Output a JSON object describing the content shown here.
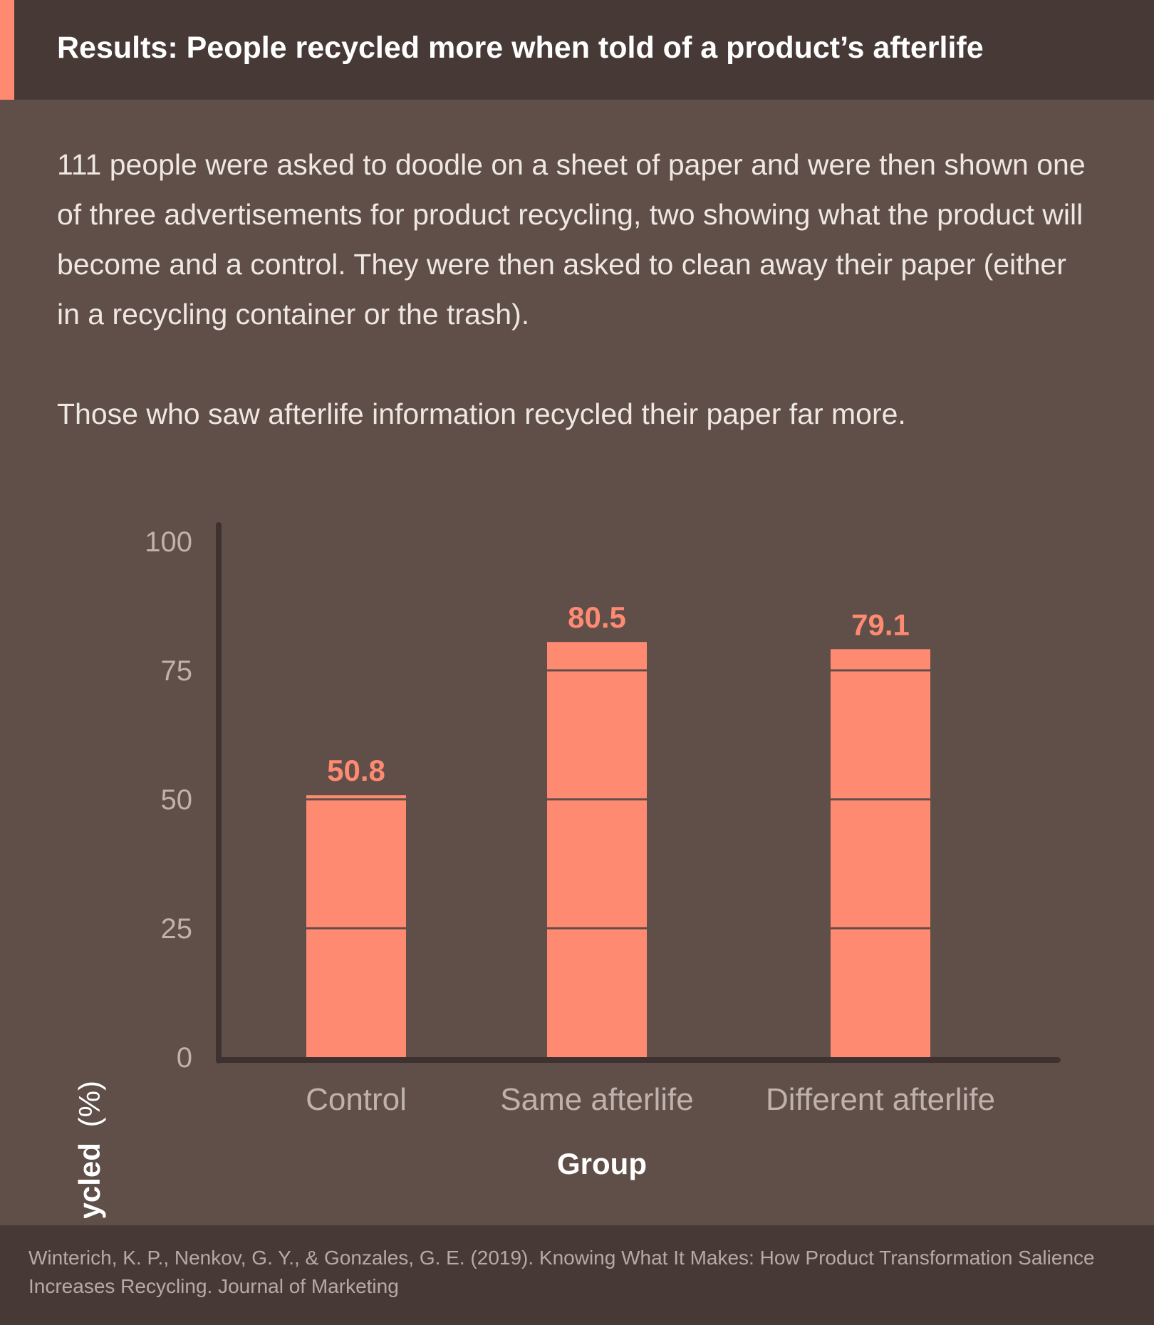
{
  "header": {
    "title": "Results: People recycled more when told of a product’s afterlife",
    "accent_color": "#ff8a72",
    "background_color": "#473a36"
  },
  "intro": {
    "paragraph1": "111 people were asked to doodle on a sheet of paper and were then shown one of three advertisements for product recycling, two showing what the product will become and a control. They were then asked to clean away their paper (either in a recycling container or the trash).",
    "paragraph2": "Those who saw afterlife information recycled their paper far more."
  },
  "chart_data": {
    "type": "bar",
    "title": "",
    "categories": [
      "Control",
      "Same afterlife",
      "Different afterlife"
    ],
    "values": [
      50.8,
      80.5,
      79.1
    ],
    "data_labels": [
      "50.8",
      "80.5",
      "79.1"
    ],
    "xlabel": "Group",
    "ylabel_bold": "Paper recycled",
    "ylabel_unit": "(%)",
    "ylim": [
      0,
      100
    ],
    "yticks": [
      0,
      25,
      50,
      75,
      100
    ],
    "grid": "lines drawn across bars at tick values",
    "bar_color": "#ff8a72",
    "axis_color": "#3e3230",
    "legend": "none"
  },
  "footer": {
    "citation": "Winterich, K. P., Nenkov, G. Y., & Gonzales, G. E. (2019). Knowing What It Makes: How Product Transformation Salience Increases Recycling. Journal of Marketing"
  }
}
